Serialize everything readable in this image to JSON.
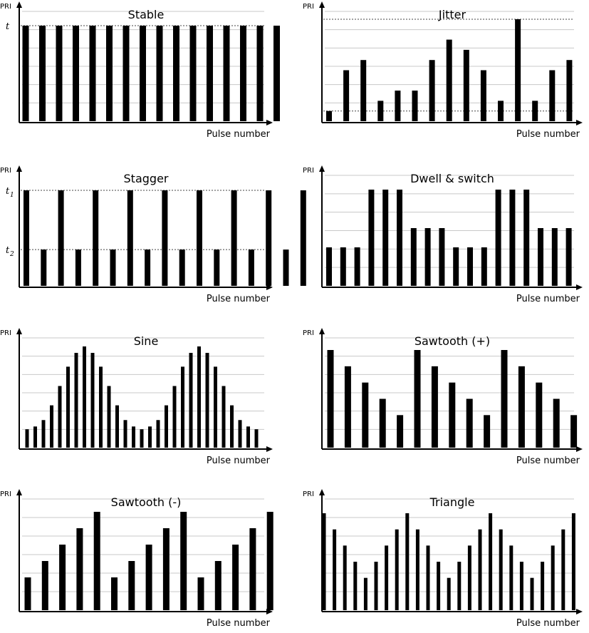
{
  "chart_data": [
    {
      "id": "stable",
      "type": "bar",
      "title": "Stable",
      "ylabel": "PRI",
      "xlabel": "Pulse number",
      "values": [
        1,
        1,
        1,
        1,
        1,
        1,
        1,
        1,
        1,
        1,
        1,
        1,
        1,
        1,
        1,
        1
      ],
      "ylim": [
        0,
        1.17
      ],
      "reference_lines": [
        1
      ],
      "ytick_labels": [
        {
          "value": 1,
          "text": "t"
        }
      ],
      "grid": true
    },
    {
      "id": "jitter",
      "type": "bar",
      "title": "Jitter",
      "ylabel": "PRI",
      "xlabel": "Pulse number",
      "values": [
        0.1,
        0.5,
        0.6,
        0.2,
        0.3,
        0.3,
        0.6,
        0.8,
        0.7,
        0.5,
        0.2,
        1.0,
        0.2,
        0.5,
        0.6
      ],
      "ylim": [
        0,
        1.15
      ],
      "reference_lines": [
        1.0,
        0.1
      ],
      "ytick_labels": [],
      "grid": true
    },
    {
      "id": "stagger",
      "type": "bar",
      "title": "Stagger",
      "ylabel": "PRI",
      "xlabel": "Pulse number",
      "values": [
        1,
        0.38,
        1,
        0.38,
        1,
        0.38,
        1,
        0.38,
        1,
        0.38,
        1,
        0.38,
        1,
        0.38,
        1,
        0.38,
        1
      ],
      "ylim": [
        0,
        1.15
      ],
      "reference_lines": [
        1,
        0.38
      ],
      "ytick_labels": [
        {
          "value": 1,
          "text": "t",
          "sub": "1"
        },
        {
          "value": 0.38,
          "text": "t",
          "sub": "2"
        }
      ],
      "grid": false
    },
    {
      "id": "dwell",
      "type": "bar",
      "title": "Dwell & switch",
      "ylabel": "PRI",
      "xlabel": "Pulse number",
      "values": [
        2,
        2,
        2,
        5,
        5,
        5,
        3,
        3,
        3,
        2,
        2,
        2,
        5,
        5,
        5,
        3,
        3,
        3
      ],
      "ylim": [
        0,
        6.3
      ],
      "reference_lines": [],
      "ytick_labels": [],
      "grid": true
    },
    {
      "id": "sine",
      "type": "bar",
      "title": "Sine",
      "ylabel": "PRI",
      "xlabel": "Pulse number",
      "values": [
        1,
        1.15,
        1.5,
        2.3,
        3.35,
        4.4,
        5.15,
        5.5,
        5.15,
        4.4,
        3.35,
        2.3,
        1.5,
        1.15,
        1,
        1.15,
        1.5,
        2.3,
        3.35,
        4.4,
        5.15,
        5.5,
        5.15,
        4.4,
        3.35,
        2.3,
        1.5,
        1.15,
        1
      ],
      "ylim": [
        0,
        6.2
      ],
      "reference_lines": [],
      "ytick_labels": [],
      "grid": true
    },
    {
      "id": "saw_plus",
      "type": "bar",
      "title": "Sawtooth (+)",
      "ylabel": "PRI",
      "xlabel": "Pulse number",
      "values": [
        6,
        5,
        4,
        3,
        2,
        6,
        5,
        4,
        3,
        2,
        6,
        5,
        4,
        3,
        2
      ],
      "ylim": [
        0,
        6.6
      ],
      "reference_lines": [],
      "ytick_labels": [],
      "grid": true
    },
    {
      "id": "saw_minus",
      "type": "bar",
      "title": "Sawtooth (-)",
      "ylabel": "PRI",
      "xlabel": "Pulse number",
      "values": [
        2,
        3,
        4,
        5,
        6,
        2,
        3,
        4,
        5,
        6,
        2,
        3,
        4,
        5,
        6
      ],
      "ylim": [
        0,
        6.6
      ],
      "reference_lines": [],
      "ytick_labels": [],
      "grid": true
    },
    {
      "id": "triangle",
      "type": "bar",
      "title": "Triangle",
      "ylabel": "PRI",
      "xlabel": "Pulse number",
      "values": [
        6,
        5,
        4,
        3,
        2,
        3,
        4,
        5,
        6,
        5,
        4,
        3,
        2,
        3,
        4,
        5,
        6,
        5,
        4,
        3,
        2,
        3,
        4,
        5,
        6
      ],
      "ylim": [
        0,
        6.6
      ],
      "reference_lines": [],
      "ytick_labels": [],
      "grid": true
    }
  ]
}
